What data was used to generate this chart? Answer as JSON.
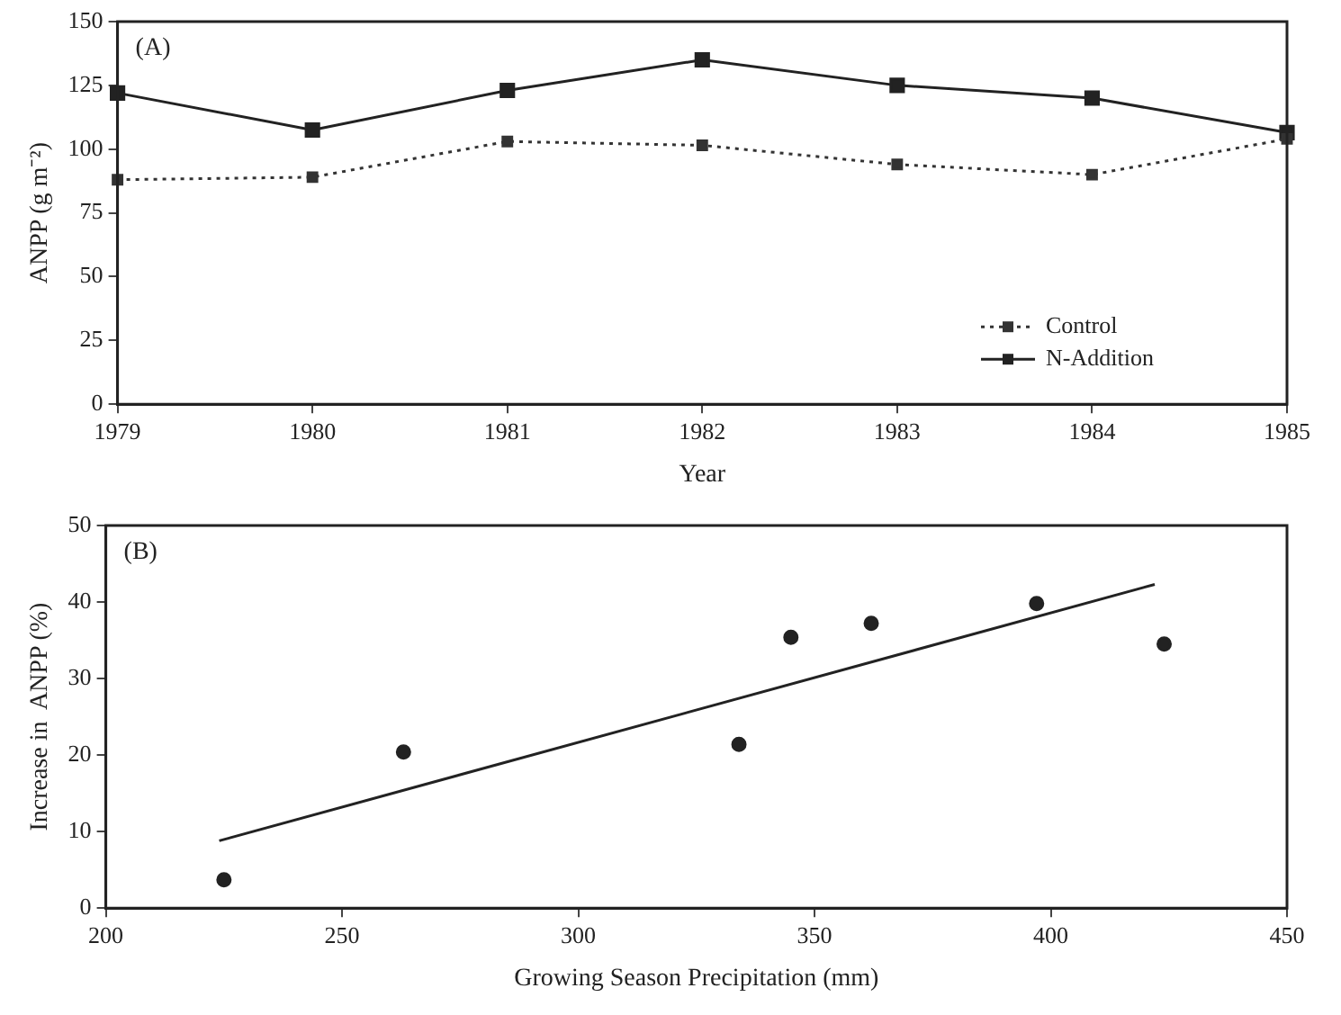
{
  "chart_data": [
    {
      "type": "line",
      "xlabel": "Year",
      "ylabel": "ANPP (g m⁻²)",
      "categories": [
        "1979",
        "1980",
        "1981",
        "1982",
        "1983",
        "1984",
        "1985"
      ],
      "series": [
        {
          "name": "Control",
          "color": "#333333",
          "line_style": "dotted",
          "values": [
            88,
            89,
            103,
            101.5,
            94,
            90,
            104
          ]
        },
        {
          "name": "N-Addition",
          "color": "#222222",
          "line_style": "solid",
          "values": [
            122,
            107.5,
            123,
            135,
            125,
            120,
            106.5
          ]
        }
      ],
      "ylim": [
        0,
        150
      ],
      "yticks": [
        0,
        25,
        50,
        75,
        100,
        125,
        150
      ],
      "marker": "square",
      "legend": "bottom right",
      "annotations": [
        "(A)"
      ]
    },
    {
      "type": "scatter",
      "xlabel": "Growing Season Precipitation (mm)",
      "ylabel": "Increase in  ANPP (%)",
      "series": [
        {
          "type": "scatter",
          "color": "#222222",
          "x": [
            225,
            263,
            334,
            345,
            362,
            397,
            424
          ],
          "values": [
            3.7,
            20.4,
            21.4,
            35.4,
            37.2,
            39.8,
            34.5
          ]
        },
        {
          "type": "line",
          "color": "#222222",
          "marker": "none",
          "x": [
            224,
            422
          ],
          "values": [
            8.8,
            42.3
          ]
        }
      ],
      "xlim": [
        200,
        450
      ],
      "xticks": [
        200,
        250,
        300,
        350,
        400,
        450
      ],
      "ylim": [
        0,
        50
      ],
      "yticks": [
        0,
        10,
        20,
        30,
        40,
        50
      ],
      "marker": "circle",
      "annotations": [
        "(B)"
      ]
    }
  ]
}
